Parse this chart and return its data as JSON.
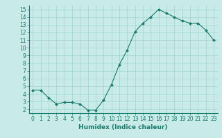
{
  "x": [
    0,
    1,
    2,
    3,
    4,
    5,
    6,
    7,
    8,
    9,
    10,
    11,
    12,
    13,
    14,
    15,
    16,
    17,
    18,
    19,
    20,
    21,
    22,
    23
  ],
  "y": [
    4.5,
    4.5,
    3.5,
    2.7,
    2.9,
    2.9,
    2.7,
    1.9,
    1.9,
    3.2,
    5.2,
    7.8,
    9.7,
    12.1,
    13.2,
    14.0,
    15.0,
    14.5,
    14.0,
    13.5,
    13.2,
    13.2,
    12.3,
    11.0
  ],
  "line_color": "#1a7a6e",
  "marker": "D",
  "marker_size": 2,
  "bg_color": "#c8ebe8",
  "grid_color": "#a0d4cf",
  "xlabel": "Humidex (Indice chaleur)",
  "xlim": [
    -0.5,
    23.5
  ],
  "ylim": [
    1.5,
    15.5
  ],
  "yticks": [
    2,
    3,
    4,
    5,
    6,
    7,
    8,
    9,
    10,
    11,
    12,
    13,
    14,
    15
  ],
  "xticks": [
    0,
    1,
    2,
    3,
    4,
    5,
    6,
    7,
    8,
    9,
    10,
    11,
    12,
    13,
    14,
    15,
    16,
    17,
    18,
    19,
    20,
    21,
    22,
    23
  ],
  "tick_fontsize": 5.5,
  "label_fontsize": 6.5
}
